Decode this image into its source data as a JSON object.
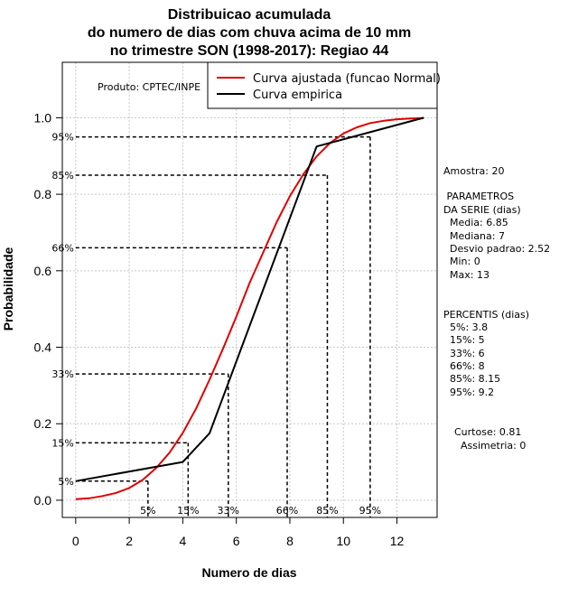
{
  "chart_data": {
    "type": "line",
    "title_lines": [
      "Distribuicao acumulada",
      "do numero de dias com chuva acima de 10 mm",
      "no trimestre SON (1998-2017): Regiao 44"
    ],
    "xlabel": "Numero de dias",
    "ylabel": "Probabilidade",
    "xlim": [
      -0.5,
      13.5
    ],
    "ylim": [
      -0.045,
      1.145
    ],
    "x_ticks": [
      0,
      2,
      4,
      6,
      8,
      10,
      12
    ],
    "x_tick_labels": [
      "0",
      "2",
      "4",
      "6",
      "8",
      "10",
      "12"
    ],
    "y_ticks": [
      0.0,
      0.2,
      0.4,
      0.6,
      0.8,
      1.0
    ],
    "y_tick_labels": [
      "0.0",
      "0.2",
      "0.4",
      "0.6",
      "0.8",
      "1.0"
    ],
    "grid": true,
    "product_label": "Produto: CPTEC/INPE",
    "legend_position": "top-right",
    "series": [
      {
        "name": "Curva ajustada (funcao Normal)",
        "color": "#e00000",
        "x": [
          0,
          0.5,
          1,
          1.5,
          2,
          2.5,
          3,
          3.5,
          4,
          4.5,
          5,
          5.5,
          6,
          6.5,
          7,
          7.5,
          8,
          8.5,
          9,
          9.5,
          10,
          10.5,
          11,
          11.5,
          12,
          12.5,
          13
        ],
        "y": [
          0.003,
          0.005,
          0.011,
          0.019,
          0.032,
          0.053,
          0.084,
          0.124,
          0.176,
          0.24,
          0.315,
          0.396,
          0.48,
          0.569,
          0.647,
          0.726,
          0.795,
          0.852,
          0.899,
          0.934,
          0.959,
          0.975,
          0.986,
          0.992,
          0.996,
          0.998,
          0.999
        ]
      },
      {
        "name": "Curva empirica",
        "color": "#000000",
        "x": [
          0,
          4,
          5,
          9,
          13
        ],
        "y": [
          0.05,
          0.1,
          0.175,
          0.925,
          1.0
        ]
      }
    ],
    "percentile_lines": [
      {
        "label": "5%",
        "prob": 0.05,
        "days": 2.7
      },
      {
        "label": "15%",
        "prob": 0.15,
        "days": 4.2
      },
      {
        "label": "33%",
        "prob": 0.33,
        "days": 5.7
      },
      {
        "label": "66%",
        "prob": 0.66,
        "days": 7.9
      },
      {
        "label": "85%",
        "prob": 0.85,
        "days": 9.4
      },
      {
        "label": "95%",
        "prob": 0.95,
        "days": 11.0
      }
    ]
  },
  "stats": {
    "amostra": "Amostra: 20",
    "parametros_title": " PARAMETROS",
    "parametros_sub": "DA SERIE (dias)",
    "parametros": [
      "Media: 6.85",
      "Mediana: 7",
      "Desvio padrao: 2.52",
      "Min: 0",
      "Max: 13"
    ],
    "percentis_title": "PERCENTIS (dias)",
    "percentis": [
      "5%: 3.8",
      "15%: 5",
      "33%: 6",
      "66%: 8",
      "85%: 8.15",
      "95%: 9.2"
    ],
    "curtose": "Curtose: 0.81",
    "assimetria": "Assimetria: 0"
  }
}
